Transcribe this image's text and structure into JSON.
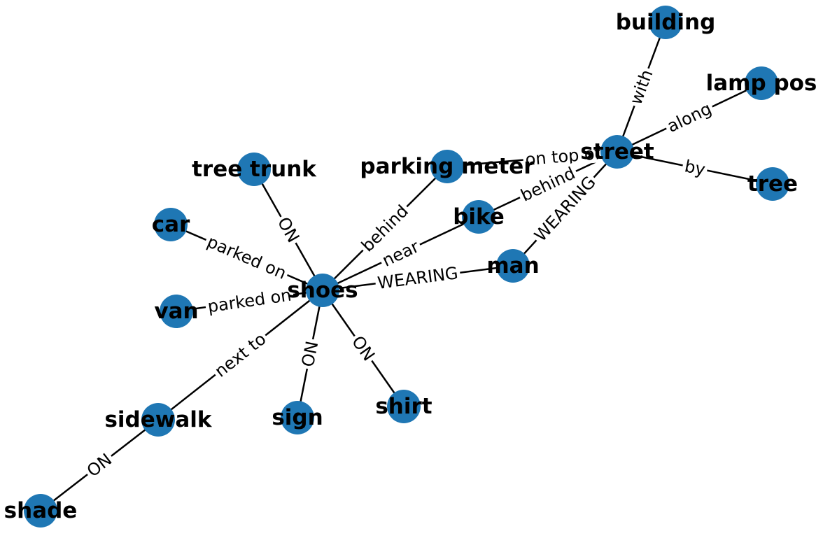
{
  "graph": {
    "type": "network",
    "node_color": "#1f77b4",
    "nodes": [
      {
        "id": "shoes",
        "label": "shoes"
      },
      {
        "id": "building",
        "label": "building"
      },
      {
        "id": "lamp_post",
        "label": "lamp pos"
      },
      {
        "id": "street",
        "label": "street"
      },
      {
        "id": "tree",
        "label": "tree"
      },
      {
        "id": "tree_trunk",
        "label": "tree trunk"
      },
      {
        "id": "parking_meter",
        "label": "parking meter"
      },
      {
        "id": "car",
        "label": "car"
      },
      {
        "id": "bike",
        "label": "bike"
      },
      {
        "id": "man",
        "label": "man"
      },
      {
        "id": "van",
        "label": "van"
      },
      {
        "id": "sidewalk",
        "label": "sidewalk"
      },
      {
        "id": "sign",
        "label": "sign"
      },
      {
        "id": "shirt",
        "label": "shirt"
      },
      {
        "id": "shade",
        "label": "shade"
      }
    ],
    "edges": [
      {
        "source": "shoes",
        "target": "tree_trunk",
        "label": "ON"
      },
      {
        "source": "shoes",
        "target": "parking_meter",
        "label": "behind"
      },
      {
        "source": "shoes",
        "target": "car",
        "label": "parked on"
      },
      {
        "source": "shoes",
        "target": "bike",
        "label": "near"
      },
      {
        "source": "shoes",
        "target": "man",
        "label": "WEARING"
      },
      {
        "source": "shoes",
        "target": "van",
        "label": "parked on"
      },
      {
        "source": "shoes",
        "target": "sidewalk",
        "label": "next to"
      },
      {
        "source": "shoes",
        "target": "sign",
        "label": "ON"
      },
      {
        "source": "shoes",
        "target": "shirt",
        "label": "ON"
      },
      {
        "source": "street",
        "target": "building",
        "label": "with"
      },
      {
        "source": "street",
        "target": "lamp_post",
        "label": "along"
      },
      {
        "source": "street",
        "target": "tree",
        "label": "by"
      },
      {
        "source": "street",
        "target": "parking_meter",
        "label": "on top of"
      },
      {
        "source": "street",
        "target": "bike",
        "label": "behind"
      },
      {
        "source": "street",
        "target": "man",
        "label": "WEARING"
      },
      {
        "source": "sidewalk",
        "target": "shade",
        "label": "ON"
      }
    ]
  }
}
